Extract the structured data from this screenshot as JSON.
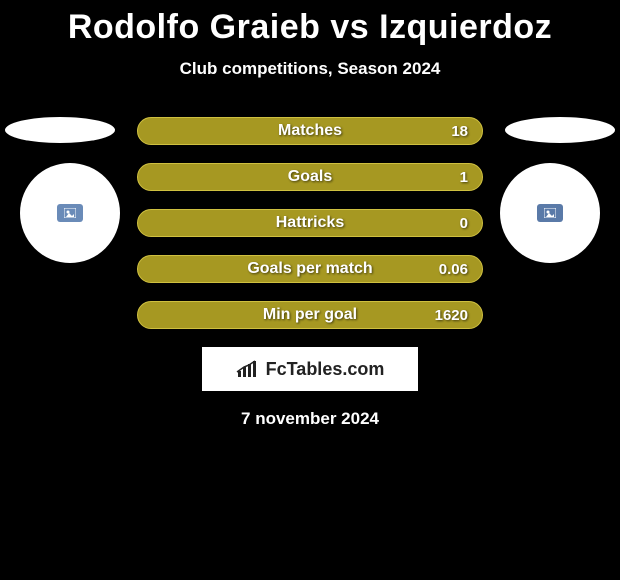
{
  "title": "Rodolfo Graieb vs Izquierdoz",
  "subtitle": "Club competitions, Season 2024",
  "date": "7 november 2024",
  "logo": {
    "text": "FcTables.com"
  },
  "player_left": {
    "badge_color": "#6a8bb8"
  },
  "player_right": {
    "badge_color": "#5a7aa8"
  },
  "stats": {
    "bar_color": "#a69822",
    "bar_border": "#cfc040",
    "rows": [
      {
        "label": "Matches",
        "right_value": "18"
      },
      {
        "label": "Goals",
        "right_value": "1"
      },
      {
        "label": "Hattricks",
        "right_value": "0"
      },
      {
        "label": "Goals per match",
        "right_value": "0.06"
      },
      {
        "label": "Min per goal",
        "right_value": "1620"
      }
    ]
  },
  "style": {
    "background_color": "#000000",
    "text_color": "#ffffff",
    "title_fontsize": 34,
    "subtitle_fontsize": 17,
    "label_fontsize": 16
  }
}
